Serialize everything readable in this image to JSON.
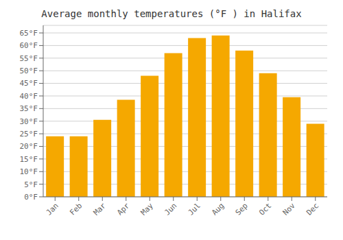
{
  "chart_data": {
    "type": "bar",
    "title": "Average monthly temperatures (°F ) in Halifax",
    "categories": [
      "Jan",
      "Feb",
      "Mar",
      "Apr",
      "May",
      "Jun",
      "Jul",
      "Aug",
      "Sep",
      "Oct",
      "Nov",
      "Dec"
    ],
    "values": [
      24,
      24,
      30.5,
      38.5,
      48,
      57,
      63,
      64,
      58,
      49,
      39.5,
      29
    ],
    "color": "#F5A800",
    "ylim": [
      0,
      68
    ],
    "yticks": [
      {
        "value": 0,
        "label": "0°F"
      },
      {
        "value": 5,
        "label": "5°F"
      },
      {
        "value": 10,
        "label": "10°F"
      },
      {
        "value": 15,
        "label": "15°F"
      },
      {
        "value": 20,
        "label": "20°F"
      },
      {
        "value": 25,
        "label": "25°F"
      },
      {
        "value": 30,
        "label": "30°F"
      },
      {
        "value": 35,
        "label": "35°F"
      },
      {
        "value": 40,
        "label": "40°F"
      },
      {
        "value": 45,
        "label": "45°F"
      },
      {
        "value": 50,
        "label": "50°F"
      },
      {
        "value": 55,
        "label": "55°F"
      },
      {
        "value": 60,
        "label": "60°F"
      },
      {
        "value": 65,
        "label": "65°F"
      }
    ],
    "grid": true
  }
}
